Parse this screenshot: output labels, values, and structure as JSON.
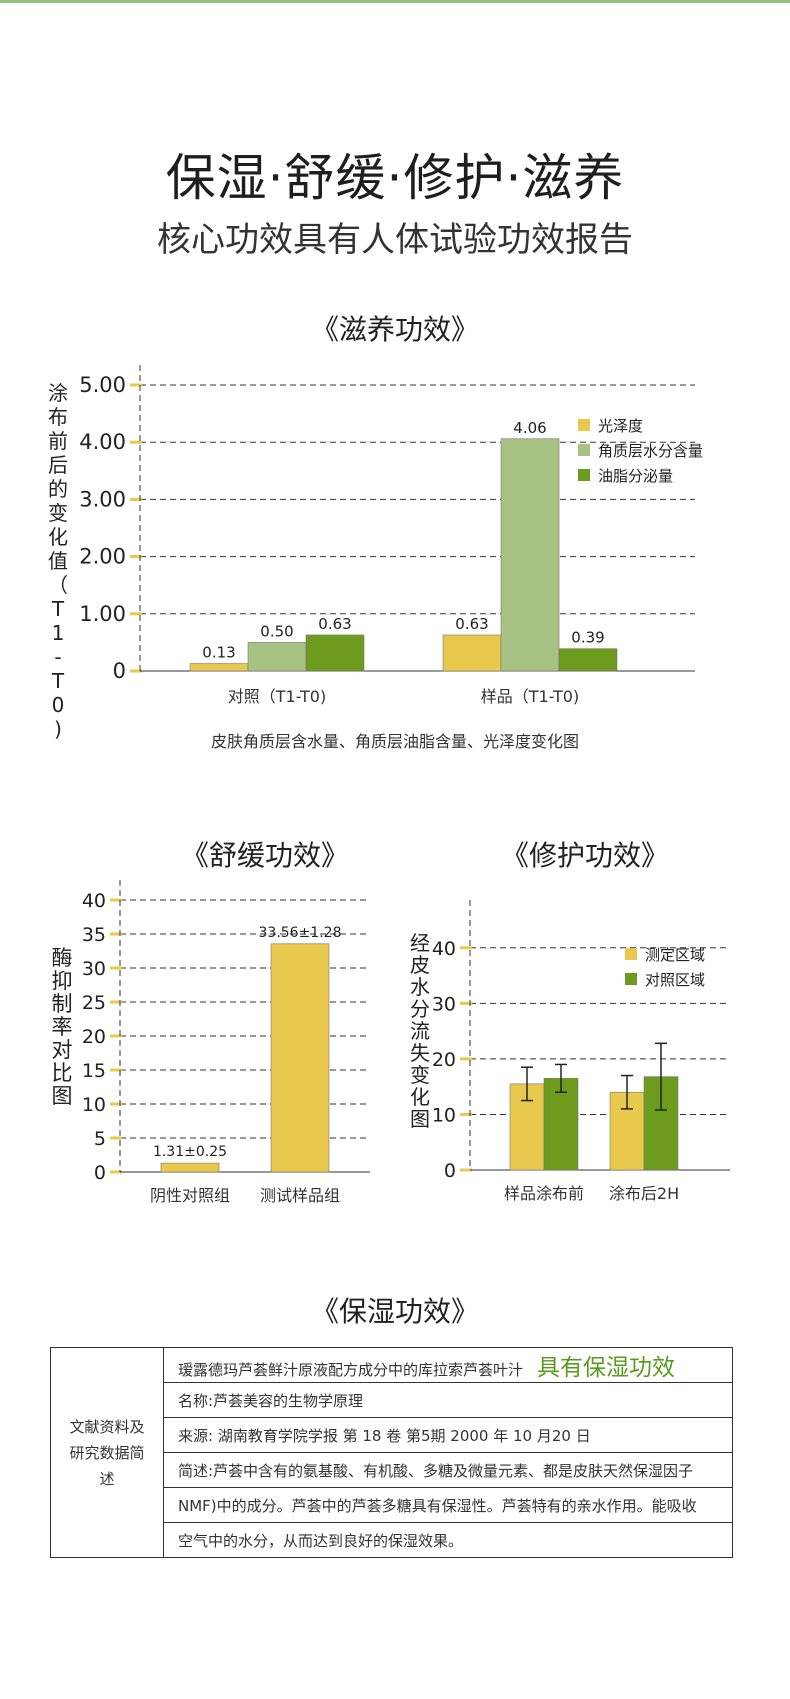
{
  "header": {
    "title": "保湿·舒缓·修护·滋养",
    "subtitle": "核心功效具有人体试验功效报告"
  },
  "chart_data": [
    {
      "type": "bar",
      "title": "《滋养功效》",
      "ylabel": "涂布前后的变化值（T1-T0)",
      "xlabel": "皮肤角质层含水量、角质层油脂含量、光泽度变化图",
      "categories": [
        "对照（T1-T0)",
        "样品（T1-T0)"
      ],
      "ylim": [
        0,
        5
      ],
      "yticks": [
        "0",
        "1.00",
        "2.00",
        "3.00",
        "4.00",
        "5.00"
      ],
      "grid": true,
      "legend": "top-right",
      "series": [
        {
          "name": "光泽度",
          "color": "#e8c84d",
          "values": [
            0.13,
            0.63
          ],
          "labels": [
            "0.13",
            "0.63"
          ]
        },
        {
          "name": "角质层水分含量",
          "color": "#a7c282",
          "values": [
            0.5,
            4.06
          ],
          "labels": [
            "0.50",
            "4.06"
          ]
        },
        {
          "name": "油脂分泌量",
          "color": "#6d9b1e",
          "values": [
            0.63,
            0.39
          ],
          "labels": [
            "0.63",
            "0.39"
          ]
        }
      ]
    },
    {
      "type": "bar",
      "title": "《舒缓功效》",
      "ylabel": "酶抑制率对比图",
      "categories": [
        "阴性对照组",
        "测试样品组"
      ],
      "ylim": [
        0,
        40
      ],
      "yticks": [
        "0",
        "5",
        "10",
        "15",
        "20",
        "25",
        "30",
        "35",
        "40"
      ],
      "grid": true,
      "series": [
        {
          "color": "#e8c84d",
          "values": [
            1.31,
            33.56
          ],
          "labels": [
            "1.31±0.25",
            "33.56±1.28"
          ]
        }
      ]
    },
    {
      "type": "bar",
      "title": "《修护功效》",
      "ylabel": "经皮水分流失变化图",
      "categories": [
        "样品涂布前",
        "涂布后2H"
      ],
      "ylim": [
        0,
        45
      ],
      "yticks": [
        "0",
        "10",
        "20",
        "30",
        "40"
      ],
      "grid": true,
      "legend": "top-right",
      "series": [
        {
          "name": "测定区域",
          "color": "#e8c84d",
          "values": [
            15.5,
            14
          ],
          "err": [
            3,
            3
          ]
        },
        {
          "name": "对照区域",
          "color": "#6d9b1e",
          "values": [
            16.5,
            16.8
          ],
          "err": [
            2.5,
            6
          ]
        }
      ]
    }
  ],
  "moist": {
    "title": "《保湿功效》",
    "left_label": "文献资料及研究数据简述",
    "row1": "瑷露德玛芦荟鲜汁原液配方成分中的库拉索芦荟叶汁",
    "row1_hi": "具有保湿功效",
    "row2": "名称:芦荟美容的生物学原理",
    "row3": "来源: 湖南教育学院学报 第 18 卷 第5期 2000 年 10 月20 日",
    "row4": "简述:芦荟中含有的氨基酸、有机酸、多糖及微量元素、都是皮肤天然保湿因子",
    "row5": "NMF)中的成分。芦荟中的芦荟多糖具有保湿性。芦荟特有的亲水作用。能吸收",
    "row6": "空气中的水分，从而达到良好的保湿效果。"
  }
}
